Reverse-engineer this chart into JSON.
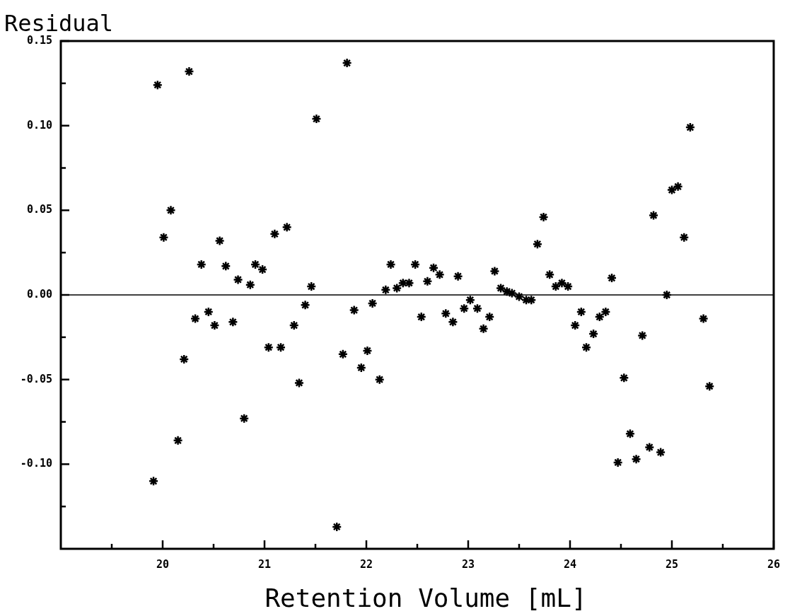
{
  "chart_data": {
    "type": "scatter",
    "ylabel": "Residual",
    "xlabel": "Retention Volume [mL]",
    "color": "#000000",
    "marker": "cross",
    "xlim": [
      19,
      26
    ],
    "ylim": [
      -0.15,
      0.15
    ],
    "xticks": [
      {
        "value": 19.5,
        "label": null
      },
      20,
      {
        "value": 20.5,
        "label": null
      },
      21,
      {
        "value": 21.5,
        "label": null
      },
      22,
      {
        "value": 22.5,
        "label": null
      },
      23,
      {
        "value": 23.5,
        "label": null
      },
      24,
      {
        "value": 24.5,
        "label": null
      },
      25,
      {
        "value": 25.5,
        "label": null
      },
      26
    ],
    "yticks": [
      {
        "value": -0.125,
        "label": null
      },
      {
        "value": -0.1,
        "label": "-0.10"
      },
      {
        "value": -0.075,
        "label": null
      },
      {
        "value": -0.05,
        "label": "-0.05"
      },
      {
        "value": -0.025,
        "label": null
      },
      {
        "value": 0,
        "label": "0.00"
      },
      {
        "value": 0.025,
        "label": null
      },
      {
        "value": 0.05,
        "label": "0.05"
      },
      {
        "value": 0.075,
        "label": null
      },
      {
        "value": 0.1,
        "label": "0.10"
      },
      {
        "value": 0.125,
        "label": null
      },
      {
        "value": 0.15,
        "label": "0.15"
      }
    ],
    "ref_lines": [
      {
        "axis": "y",
        "value": 0
      }
    ],
    "x": [
      19.91,
      19.95,
      20.01,
      20.08,
      20.15,
      20.21,
      20.26,
      20.32,
      20.38,
      20.45,
      20.51,
      20.56,
      20.62,
      20.69,
      20.74,
      20.8,
      20.86,
      20.91,
      20.98,
      21.04,
      21.1,
      21.16,
      21.22,
      21.29,
      21.34,
      21.4,
      21.46,
      21.51,
      21.71,
      21.77,
      21.81,
      21.88,
      21.95,
      22.01,
      22.06,
      22.13,
      22.19,
      22.24,
      22.3,
      22.36,
      22.42,
      22.48,
      22.54,
      22.6,
      22.66,
      22.72,
      22.78,
      22.85,
      22.9,
      22.96,
      23.02,
      23.09,
      23.15,
      23.21,
      23.26,
      23.32,
      23.38,
      23.43,
      23.5,
      23.57,
      23.62,
      23.68,
      23.74,
      23.8,
      23.86,
      23.92,
      23.98,
      24.05,
      24.11,
      24.16,
      24.23,
      24.29,
      24.35,
      24.41,
      24.47,
      24.53,
      24.59,
      24.65,
      24.71,
      24.78,
      24.82,
      24.89,
      24.95,
      25.0,
      25.06,
      25.12,
      25.18,
      25.31,
      25.37
    ],
    "values": [
      -0.11,
      0.124,
      0.034,
      0.05,
      -0.086,
      -0.038,
      0.132,
      -0.014,
      0.018,
      -0.01,
      -0.018,
      0.032,
      0.017,
      -0.016,
      0.009,
      -0.073,
      0.006,
      0.018,
      0.015,
      -0.031,
      0.036,
      -0.031,
      0.04,
      -0.018,
      -0.052,
      -0.006,
      0.005,
      0.104,
      -0.137,
      -0.035,
      0.137,
      -0.009,
      -0.043,
      -0.033,
      -0.005,
      -0.05,
      0.003,
      0.018,
      0.004,
      0.007,
      0.007,
      0.018,
      -0.013,
      0.008,
      0.016,
      0.012,
      -0.011,
      -0.016,
      0.011,
      -0.008,
      -0.003,
      -0.008,
      -0.02,
      -0.013,
      0.014,
      0.004,
      0.002,
      0.001,
      -0.001,
      -0.003,
      -0.003,
      0.03,
      0.046,
      0.012,
      0.005,
      0.007,
      0.005,
      -0.018,
      -0.01,
      -0.031,
      -0.023,
      -0.013,
      -0.01,
      0.01,
      -0.099,
      -0.049,
      -0.082,
      -0.097,
      -0.024,
      -0.09,
      0.047,
      -0.093,
      0.0,
      0.062,
      0.064,
      0.034,
      0.099,
      -0.014,
      -0.054
    ]
  }
}
